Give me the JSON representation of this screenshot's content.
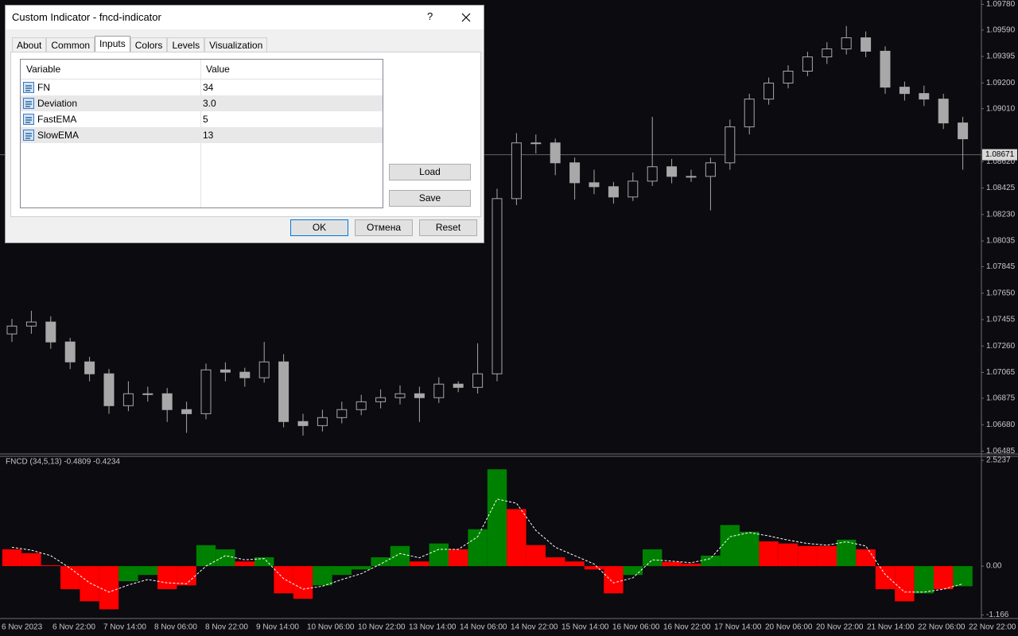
{
  "dialog": {
    "title": "Custom Indicator - fncd-indicator",
    "help": "?",
    "tabs": [
      "About",
      "Common",
      "Inputs",
      "Colors",
      "Levels",
      "Visualization"
    ],
    "active_tab": 2,
    "table": {
      "headers": [
        "Variable",
        "Value"
      ],
      "rows": [
        [
          "FN",
          "34"
        ],
        [
          "Deviation",
          "3.0"
        ],
        [
          "FastEMA",
          "5"
        ],
        [
          "SlowEMA",
          "13"
        ]
      ]
    },
    "side_buttons": [
      "Load",
      "Save"
    ],
    "bottom_buttons": [
      "OK",
      "Отмена",
      "Reset"
    ]
  },
  "chart_data": [
    {
      "type": "candlestick",
      "color": "#a8a8a8",
      "open": [
        1.07349,
        1.07407,
        1.07437,
        1.0729,
        1.07143,
        1.07055,
        1.0682,
        1.06908,
        1.06908,
        1.06791,
        1.06761,
        1.07084,
        1.07067,
        1.07026,
        1.07143,
        1.06703,
        1.06673,
        1.06732,
        1.06791,
        1.06849,
        1.06879,
        1.06908,
        1.06879,
        1.06979,
        1.06955,
        1.07055,
        1.08347,
        1.08758,
        1.08758,
        1.08611,
        1.08464,
        1.08435,
        1.08359,
        1.08476,
        1.08582,
        1.08511,
        1.08511,
        1.08611,
        1.08876,
        1.09081,
        1.09199,
        1.09287,
        1.09392,
        1.09451,
        1.09533,
        1.09434,
        1.09169,
        1.09122,
        1.09081,
        1.08905
      ],
      "high": [
        1.0746,
        1.0752,
        1.0748,
        1.0732,
        1.0718,
        1.0709,
        1.07,
        1.0696,
        1.0695,
        1.0685,
        1.0713,
        1.0714,
        1.071,
        1.0729,
        1.072,
        1.0676,
        1.0679,
        1.0685,
        1.069,
        1.0694,
        1.0697,
        1.0696,
        1.0703,
        1.07,
        1.0728,
        1.0842,
        1.0883,
        1.0882,
        1.0879,
        1.0865,
        1.0856,
        1.0847,
        1.0854,
        1.0895,
        1.0864,
        1.0856,
        1.0865,
        1.0893,
        1.0912,
        1.0924,
        1.0933,
        1.0943,
        1.095,
        1.0962,
        1.0958,
        1.0947,
        1.0921,
        1.0918,
        1.0912,
        1.0895
      ],
      "low": [
        1.0729,
        1.0735,
        1.0724,
        1.0709,
        1.07,
        1.0676,
        1.0678,
        1.0685,
        1.067,
        1.0662,
        1.0672,
        1.07,
        1.0696,
        1.0699,
        1.0666,
        1.066,
        1.0663,
        1.0669,
        1.0675,
        1.068,
        1.0683,
        1.067,
        1.0684,
        1.0692,
        1.0691,
        1.07,
        1.083,
        1.0868,
        1.0852,
        1.0834,
        1.0838,
        1.0831,
        1.0833,
        1.0844,
        1.0846,
        1.0847,
        1.0826,
        1.0856,
        1.0882,
        1.0904,
        1.0916,
        1.0925,
        1.0934,
        1.0941,
        1.0939,
        1.0912,
        1.0907,
        1.0903,
        1.0886,
        1.0856
      ],
      "close": [
        1.07407,
        1.07437,
        1.0729,
        1.07143,
        1.07055,
        1.0682,
        1.06908,
        1.06908,
        1.06791,
        1.06761,
        1.07084,
        1.07067,
        1.07026,
        1.07143,
        1.06703,
        1.06673,
        1.06732,
        1.06791,
        1.06849,
        1.06879,
        1.06908,
        1.06879,
        1.06979,
        1.06955,
        1.07055,
        1.08347,
        1.08758,
        1.08758,
        1.08611,
        1.08464,
        1.08435,
        1.08359,
        1.08476,
        1.08582,
        1.08511,
        1.08511,
        1.08611,
        1.08876,
        1.09081,
        1.09199,
        1.09287,
        1.09392,
        1.09451,
        1.09533,
        1.09434,
        1.09169,
        1.09122,
        1.09081,
        1.08905,
        1.08788
      ],
      "ylim": [
        1.0647,
        1.098
      ],
      "yticks": [
        {
          "value": 1.0978,
          "label": "1.09780"
        },
        {
          "value": 1.0959,
          "label": "1.09590"
        },
        1.09395,
        {
          "value": 1.092,
          "label": "1.09200"
        },
        {
          "value": 1.0901,
          "label": "1.09010"
        },
        {
          "value": 1.0862,
          "label": "1.08620"
        },
        1.08425,
        {
          "value": 1.0823,
          "label": "1.08230"
        },
        1.08035,
        1.07845,
        {
          "value": 1.0765,
          "label": "1.07650"
        },
        1.07455,
        {
          "value": 1.0726,
          "label": "1.07260"
        },
        1.07065,
        1.06875,
        {
          "value": 1.0668,
          "label": "1.06680"
        },
        1.06485
      ],
      "current_price": 1.08671,
      "time_labels": [
        "6 Nov 2023",
        "6 Nov 22:00",
        "7 Nov 14:00",
        "8 Nov 06:00",
        "8 Nov 22:00",
        "9 Nov 14:00",
        "10 Nov 06:00",
        "10 Nov 22:00",
        "13 Nov 14:00",
        "14 Nov 06:00",
        "14 Nov 22:00",
        "15 Nov 14:00",
        "16 Nov 06:00",
        "16 Nov 22:00",
        "17 Nov 14:00",
        "20 Nov 06:00",
        "20 Nov 22:00",
        "21 Nov 14:00",
        "22 Nov 06:00",
        "22 Nov 22:00"
      ]
    },
    {
      "type": "bar",
      "title": "FNCD (34,5,13) -0.4809 -0.4234",
      "values": [
        0.4,
        0.31,
        0.02,
        -0.55,
        -0.84,
        -1.03,
        -0.36,
        -0.21,
        -0.55,
        -0.46,
        0.5,
        0.4,
        0.11,
        0.21,
        -0.65,
        -0.78,
        -0.46,
        -0.21,
        -0.08,
        0.21,
        0.48,
        0.11,
        0.54,
        0.4,
        0.88,
        2.31,
        1.36,
        0.5,
        0.21,
        0.11,
        -0.08,
        -0.65,
        -0.21,
        0.4,
        0.1,
        0.06,
        0.25,
        0.98,
        0.82,
        0.59,
        0.54,
        0.48,
        0.48,
        0.63,
        0.4,
        -0.55,
        -0.84,
        -0.65,
        -0.55,
        -0.4809
      ],
      "colors": [
        "#ff0000",
        "#ff0000",
        "#ff0000",
        "#ff0000",
        "#ff0000",
        "#ff0000",
        "#008000",
        "#008000",
        "#ff0000",
        "#ff0000",
        "#008000",
        "#008000",
        "#ff0000",
        "#008000",
        "#ff0000",
        "#ff0000",
        "#008000",
        "#008000",
        "#008000",
        "#008000",
        "#008000",
        "#ff0000",
        "#008000",
        "#ff0000",
        "#008000",
        "#008000",
        "#ff0000",
        "#ff0000",
        "#ff0000",
        "#ff0000",
        "#ff0000",
        "#ff0000",
        "#008000",
        "#008000",
        "#ff0000",
        "#ff0000",
        "#008000",
        "#008000",
        "#008000",
        "#ff0000",
        "#ff0000",
        "#ff0000",
        "#ff0000",
        "#008000",
        "#ff0000",
        "#ff0000",
        "#ff0000",
        "#008000",
        "#ff0000",
        "#008000"
      ],
      "signal": [
        0.45,
        0.38,
        0.25,
        -0.05,
        -0.4,
        -0.62,
        -0.45,
        -0.32,
        -0.4,
        -0.42,
        0.0,
        0.25,
        0.15,
        0.18,
        -0.3,
        -0.55,
        -0.48,
        -0.32,
        -0.18,
        0.05,
        0.3,
        0.2,
        0.4,
        0.4,
        0.7,
        1.6,
        1.5,
        0.85,
        0.45,
        0.25,
        0.05,
        -0.4,
        -0.28,
        0.15,
        0.12,
        0.08,
        0.18,
        0.7,
        0.8,
        0.72,
        0.62,
        0.54,
        0.5,
        0.58,
        0.48,
        -0.2,
        -0.62,
        -0.62,
        -0.55,
        -0.4234
      ],
      "ylim": [
        -1.25,
        2.6
      ],
      "yticks": [
        2.5237,
        {
          "value": 0,
          "label": "0.00"
        },
        -1.166
      ]
    }
  ]
}
